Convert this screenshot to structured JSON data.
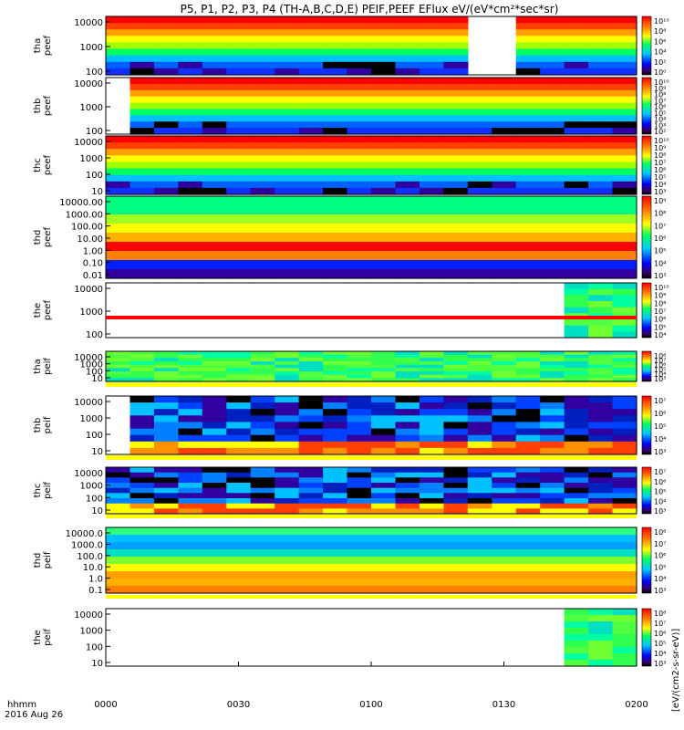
{
  "title": "P5, P1, P2, P3, P4 (TH-A,B,C,D,E) PEIF,PEEF EFlux eV/(eV*cm²*sec*sr)",
  "colorbar_title_main": "[eV/(cm2-s-sr-eV)]",
  "x_axis": {
    "ticks": [
      "0000",
      "0030",
      "0100",
      "0130",
      "0200"
    ],
    "label_top": "hhmm",
    "label_bottom": "2016 Aug 26"
  },
  "chart_data": [
    {
      "type": "heatmap",
      "panel": "tha peef",
      "ylabel": [
        "tha",
        "peef"
      ],
      "yticks": [
        "10000",
        "1000",
        "100"
      ],
      "scale": "log",
      "colorbar_ticks": [
        "10¹⁰",
        "10⁸",
        "10⁶",
        "10⁴",
        "10²",
        "10⁰"
      ]
    },
    {
      "type": "heatmap",
      "panel": "thb peef",
      "ylabel": [
        "thb",
        "peef"
      ],
      "yticks": [
        "10000",
        "1000",
        "100"
      ],
      "scale": "log",
      "colorbar_ticks": [
        "10¹⁰",
        "10⁹",
        "10⁸",
        "10⁷",
        "10⁶",
        "10⁵",
        "10⁴",
        "10³",
        "10²"
      ]
    },
    {
      "type": "heatmap",
      "panel": "thc peef",
      "ylabel": [
        "thc",
        "peef"
      ],
      "yticks": [
        "10000",
        "1000",
        "100",
        "10"
      ],
      "scale": "log",
      "colorbar_ticks": [
        "10¹⁰",
        "10⁹",
        "10⁸",
        "10⁷",
        "10⁶",
        "10⁵",
        "10⁴",
        "10³"
      ]
    },
    {
      "type": "heatmap",
      "panel": "thd peef",
      "ylabel": [
        "thd",
        "peef"
      ],
      "yticks": [
        "10000.00",
        "1000.00",
        "100.00",
        "10.00",
        "1.00",
        "0.10",
        "0.01"
      ],
      "scale": "log",
      "colorbar_ticks": [
        "10⁹",
        "10⁸",
        "10⁷",
        "10⁶",
        "10⁵",
        "10⁴",
        "10³"
      ]
    },
    {
      "type": "heatmap",
      "panel": "the peef",
      "ylabel": [
        "the",
        "peef"
      ],
      "yticks": [
        "10000",
        "1000",
        "100"
      ],
      "scale": "log",
      "colorbar_ticks": [
        "10¹⁰",
        "10⁹",
        "10⁸",
        "10⁷",
        "10⁶",
        "10⁵",
        "10⁴"
      ]
    },
    {
      "type": "heatmap",
      "panel": "tha peif",
      "ylabel": [
        "tha",
        "peif"
      ],
      "yticks": [
        "10000",
        "1000",
        "100",
        "10"
      ],
      "scale": "log",
      "colorbar_ticks": [
        "10⁸",
        "10⁷",
        "10⁶",
        "10⁵",
        "10⁴",
        "10³"
      ]
    },
    {
      "type": "heatmap",
      "panel": "thb peif",
      "ylabel": [
        "thb",
        "peif"
      ],
      "yticks": [
        "10000",
        "1000",
        "100",
        "10"
      ],
      "scale": "log",
      "colorbar_ticks": [
        "10⁷",
        "10⁶",
        "10⁵",
        "10⁴",
        "10³"
      ]
    },
    {
      "type": "heatmap",
      "panel": "thc peif",
      "ylabel": [
        "thc",
        "peif"
      ],
      "yticks": [
        "10000",
        "1000",
        "100",
        "10"
      ],
      "scale": "log",
      "colorbar_ticks": [
        "10⁷",
        "10⁶",
        "10⁵",
        "10⁴",
        "10³"
      ]
    },
    {
      "type": "heatmap",
      "panel": "thd peif",
      "ylabel": [
        "thd",
        "peif"
      ],
      "yticks": [
        "10000.0",
        "1000.0",
        "100.0",
        "10.0",
        "1.0",
        "0.1"
      ],
      "scale": "log",
      "colorbar_ticks": [
        "10⁸",
        "10⁷",
        "10⁶",
        "10⁵",
        "10⁴",
        "10³"
      ]
    },
    {
      "type": "heatmap",
      "panel": "the peif",
      "ylabel": [
        "the",
        "peif"
      ],
      "yticks": [
        "10000",
        "1000",
        "100",
        "10"
      ],
      "scale": "log",
      "colorbar_ticks": [
        "10⁸",
        "10⁷",
        "10⁶",
        "10⁵",
        "10⁴",
        "10³"
      ]
    }
  ]
}
